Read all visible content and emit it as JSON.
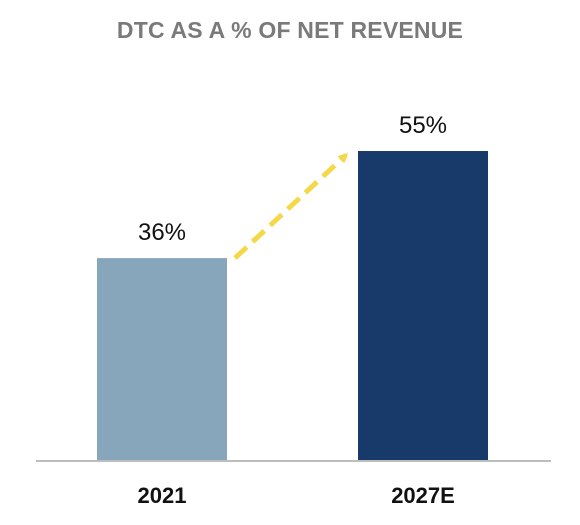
{
  "chart_data": {
    "type": "bar",
    "title": "DTC AS A % OF NET REVENUE",
    "categories": [
      "2021",
      "2027E"
    ],
    "values": [
      36,
      55
    ],
    "value_labels": [
      "36%",
      "55%"
    ],
    "ylim": [
      0,
      60
    ],
    "grid": false,
    "legend": "none",
    "bar_colors": [
      "#87a6bc",
      "#173a6b"
    ],
    "arrow_color": "#f5d84a",
    "title_color": "#7a7a7a",
    "axis_color": "#bdbdbd"
  }
}
